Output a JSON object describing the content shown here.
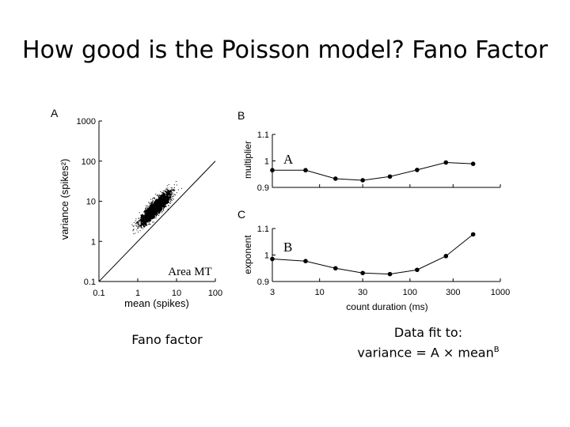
{
  "slide": {
    "title": "How good is the Poisson model? Fano Factor",
    "caption_left": "Fano factor",
    "caption_right_line1": "Data fit to:",
    "caption_right_line2_prefix": "variance = A × mean",
    "caption_right_superscript": "B"
  },
  "chart_data": [
    {
      "type": "scatter",
      "panel_label": "A",
      "annotation": "Area MT",
      "xlabel": "mean (spikes)",
      "ylabel": "variance (spikes²)",
      "x_scale": "log",
      "y_scale": "log",
      "xlim": [
        0.1,
        100
      ],
      "ylim": [
        0.1,
        1000
      ],
      "x_ticks": [
        "0.1",
        "1",
        "10",
        "100"
      ],
      "y_ticks": [
        "0.1",
        "1",
        "10",
        "100",
        "1000"
      ],
      "reference_line": "variance = mean",
      "cloud": {
        "description_of_points": "dense cloud of per-neuron mean/variance pairs",
        "log10_mean_center": 0.45,
        "log10_variance_center": 0.85,
        "log10_mean_spread": 0.55,
        "log10_variance_spread": 0.6
      }
    },
    {
      "type": "line",
      "panel_label": "B",
      "ylabel": "multiplier",
      "inline_label": "A",
      "x_scale": "log",
      "xlim": [
        3,
        1000
      ],
      "ylim": [
        0.9,
        1.1
      ],
      "y_ticks": [
        "0.9",
        "1",
        "1.1"
      ],
      "x": [
        3,
        7,
        15,
        30,
        60,
        120,
        250,
        500
      ],
      "y": [
        0.965,
        0.965,
        0.933,
        0.927,
        0.941,
        0.966,
        0.994,
        0.989
      ]
    },
    {
      "type": "line",
      "panel_label": "C",
      "ylabel": "exponent",
      "inline_label": "B",
      "xlabel": "count duration (ms)",
      "x_scale": "log",
      "xlim": [
        3,
        1000
      ],
      "ylim": [
        0.9,
        1.1
      ],
      "x_ticks": [
        "3",
        "10",
        "30",
        "100",
        "300",
        "1000"
      ],
      "y_ticks": [
        "0.9",
        "1",
        "1.1"
      ],
      "x": [
        3,
        7,
        15,
        30,
        60,
        120,
        250,
        500
      ],
      "y": [
        0.985,
        0.977,
        0.95,
        0.932,
        0.928,
        0.944,
        0.996,
        1.078
      ]
    }
  ]
}
